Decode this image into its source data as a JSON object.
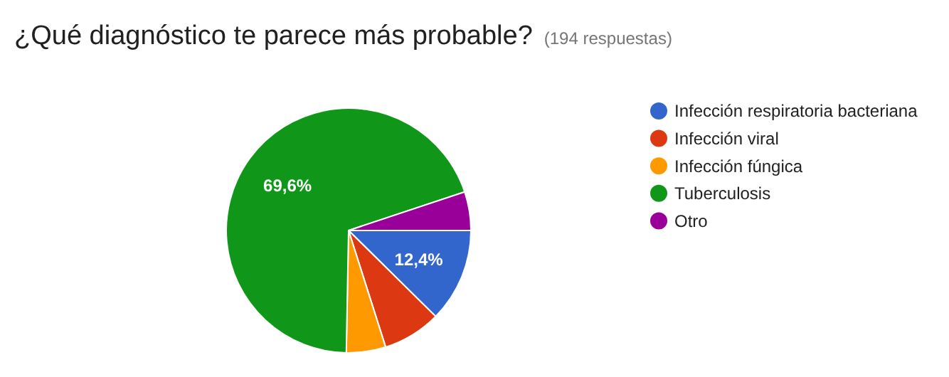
{
  "chart_data": {
    "type": "pie",
    "title": "¿Qué diagnóstico te parece más probable?",
    "subtitle": "(194 respuestas)",
    "categories": [
      "Infección respiratoria bacteriana",
      "Infección viral",
      "Infección fúngica",
      "Tuberculosis",
      "Otro"
    ],
    "values": [
      12.4,
      7.7,
      5.2,
      69.6,
      5.1
    ],
    "colors": [
      "#3366cc",
      "#dc3912",
      "#ff9900",
      "#109618",
      "#990099"
    ],
    "value_labels": [
      "12,4%",
      null,
      null,
      "69,6%",
      null
    ],
    "legend": "right"
  }
}
